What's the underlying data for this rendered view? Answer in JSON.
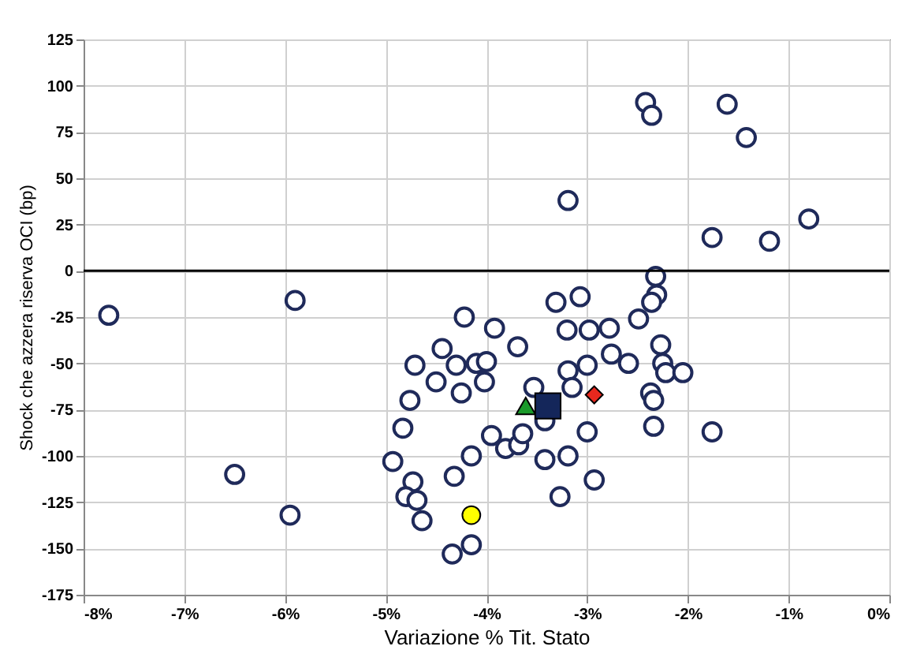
{
  "chart_data": {
    "type": "scatter",
    "xlabel": "Variazione % Tit. Stato",
    "ylabel": "Shock che azzera riserva OCI (bp)",
    "xlim": [
      -8,
      0
    ],
    "ylim": [
      -175,
      125
    ],
    "xticks": [
      {
        "value": -8,
        "label": "-8%"
      },
      {
        "value": -7,
        "label": "-7%"
      },
      {
        "value": -6,
        "label": "-6%"
      },
      {
        "value": -5,
        "label": "-5%"
      },
      {
        "value": -4,
        "label": "-4%"
      },
      {
        "value": -3,
        "label": "-3%"
      },
      {
        "value": -2,
        "label": "-2%"
      },
      {
        "value": -1,
        "label": "-1%"
      },
      {
        "value": 0,
        "label": "0%"
      }
    ],
    "yticks": [
      -175,
      -150,
      -125,
      -100,
      -75,
      -50,
      -25,
      0,
      25,
      50,
      75,
      100,
      125
    ],
    "grid": true,
    "ref_lines": [
      {
        "axis": "y",
        "value": 0,
        "color": "#000000"
      }
    ],
    "series": [
      {
        "color": "#1f2a5a",
        "marker": "circle",
        "x": [
          -7.75,
          -5.9,
          -6.5,
          -5.95,
          -4.22,
          -4.44,
          -4.71,
          -4.3,
          -4.5,
          -4.25,
          -4.76,
          -4.83,
          -4.93,
          -4.32,
          -4.73,
          -4.8,
          -4.69,
          -4.64,
          -4.34,
          -2.42,
          -2.36,
          -1.61,
          -1.42,
          -3.19,
          -1.76,
          -1.19,
          -0.8,
          -2.32,
          -2.31,
          -2.36,
          -2.49,
          -3.31,
          -3.07,
          -3.92,
          -3.69,
          -3.2,
          -2.98,
          -2.78,
          -2.76,
          -2.59,
          -2.27,
          -2.25,
          -2.22,
          -2.05,
          -4.1,
          -4.0,
          -4.02,
          -3.53,
          -3.19,
          -3.0,
          -3.15,
          -2.37,
          -2.34,
          -2.34,
          -1.76,
          -3.0,
          -3.42,
          -3.95,
          -3.81,
          -3.68,
          -3.64,
          -4.15,
          -3.42,
          -3.19,
          -2.93,
          -3.27,
          -4.15
        ],
        "values": [
          -24,
          -16,
          -110,
          -132,
          -25,
          -42,
          -51,
          -51,
          -60,
          -66,
          -70,
          -85,
          -103,
          -111,
          -114,
          -122,
          -124,
          -135,
          -153,
          91,
          84,
          90,
          72,
          38,
          18,
          16,
          28,
          -3,
          -13,
          -17,
          -26,
          -17,
          -14,
          -31,
          -41,
          -32,
          -32,
          -31,
          -45,
          -50,
          -40,
          -50,
          -55,
          -55,
          -50,
          -49,
          -60,
          -63,
          -54,
          -51,
          -63,
          -66,
          -70,
          -84,
          -87,
          -87,
          -81,
          -89,
          -96,
          -94,
          -88,
          -100,
          -102,
          -100,
          -113,
          -122,
          -148
        ]
      },
      {
        "color": "#ffff00",
        "marker": "circle",
        "x": [
          -4.15
        ],
        "values": [
          -132
        ]
      },
      {
        "color": "#1a9a2a",
        "marker": "triangle",
        "x": [
          -3.61
        ],
        "values": [
          -73
        ]
      },
      {
        "color": "#14265a",
        "marker": "square",
        "x": [
          -3.39
        ],
        "values": [
          -73
        ]
      },
      {
        "color": "#e8281e",
        "marker": "diamond",
        "x": [
          -2.93
        ],
        "values": [
          -67
        ]
      }
    ]
  }
}
